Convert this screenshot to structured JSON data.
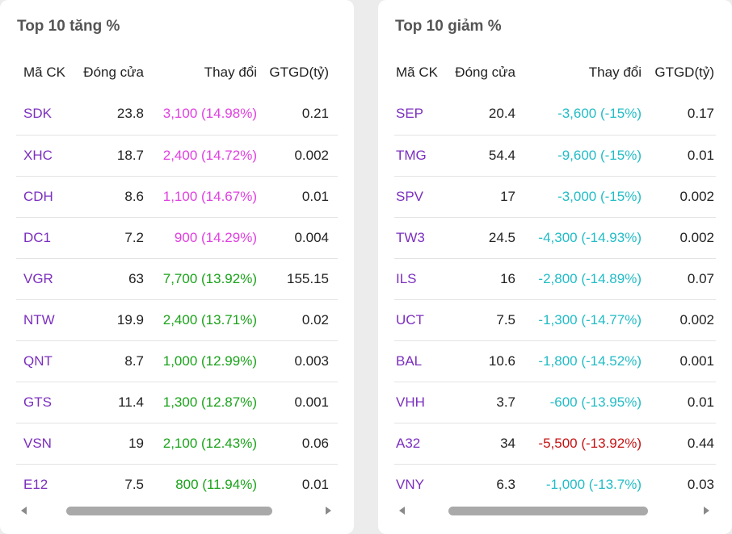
{
  "gainers": {
    "title": "Top 10 tăng %",
    "columns": [
      "Mã CK",
      "Đóng cửa",
      "Thay đổi",
      "GTGD(tỷ)"
    ],
    "rows": [
      {
        "symbol": "SDK",
        "close": "23.8",
        "change": "3,100 (14.98%)",
        "value": "0.21",
        "status": "ceiling"
      },
      {
        "symbol": "XHC",
        "close": "18.7",
        "change": "2,400 (14.72%)",
        "value": "0.002",
        "status": "ceiling"
      },
      {
        "symbol": "CDH",
        "close": "8.6",
        "change": "1,100 (14.67%)",
        "value": "0.01",
        "status": "ceiling"
      },
      {
        "symbol": "DC1",
        "close": "7.2",
        "change": "900 (14.29%)",
        "value": "0.004",
        "status": "ceiling"
      },
      {
        "symbol": "VGR",
        "close": "63",
        "change": "7,700 (13.92%)",
        "value": "155.15",
        "status": "up"
      },
      {
        "symbol": "NTW",
        "close": "19.9",
        "change": "2,400 (13.71%)",
        "value": "0.02",
        "status": "up"
      },
      {
        "symbol": "QNT",
        "close": "8.7",
        "change": "1,000 (12.99%)",
        "value": "0.003",
        "status": "up"
      },
      {
        "symbol": "GTS",
        "close": "11.4",
        "change": "1,300 (12.87%)",
        "value": "0.001",
        "status": "up"
      },
      {
        "symbol": "VSN",
        "close": "19",
        "change": "2,100 (12.43%)",
        "value": "0.06",
        "status": "up"
      },
      {
        "symbol": "E12",
        "close": "7.5",
        "change": "800 (11.94%)",
        "value": "0.01",
        "status": "up"
      }
    ]
  },
  "losers": {
    "title": "Top 10 giảm %",
    "columns": [
      "Mã CK",
      "Đóng cửa",
      "Thay đổi",
      "GTGD(tỷ)"
    ],
    "rows": [
      {
        "symbol": "SEP",
        "close": "20.4",
        "change": "-3,600 (-15%)",
        "value": "0.17",
        "status": "floor"
      },
      {
        "symbol": "TMG",
        "close": "54.4",
        "change": "-9,600 (-15%)",
        "value": "0.01",
        "status": "floor"
      },
      {
        "symbol": "SPV",
        "close": "17",
        "change": "-3,000 (-15%)",
        "value": "0.002",
        "status": "floor"
      },
      {
        "symbol": "TW3",
        "close": "24.5",
        "change": "-4,300 (-14.93%)",
        "value": "0.002",
        "status": "floor"
      },
      {
        "symbol": "ILS",
        "close": "16",
        "change": "-2,800 (-14.89%)",
        "value": "0.07",
        "status": "floor"
      },
      {
        "symbol": "UCT",
        "close": "7.5",
        "change": "-1,300 (-14.77%)",
        "value": "0.002",
        "status": "floor"
      },
      {
        "symbol": "BAL",
        "close": "10.6",
        "change": "-1,800 (-14.52%)",
        "value": "0.001",
        "status": "floor"
      },
      {
        "symbol": "VHH",
        "close": "3.7",
        "change": "-600 (-13.95%)",
        "value": "0.01",
        "status": "floor"
      },
      {
        "symbol": "A32",
        "close": "34",
        "change": "-5,500 (-13.92%)",
        "value": "0.44",
        "status": "down"
      },
      {
        "symbol": "VNY",
        "close": "6.3",
        "change": "-1,000 (-13.7%)",
        "value": "0.03",
        "status": "floor"
      }
    ]
  },
  "colors": {
    "symbol": "#7b2fbe",
    "ceiling": "#e040e0",
    "up": "#1aa31a",
    "floor": "#22bcc6",
    "down": "#c41212"
  },
  "icons": {
    "scroll_left": "triangle-left-icon",
    "scroll_right": "triangle-right-icon"
  }
}
